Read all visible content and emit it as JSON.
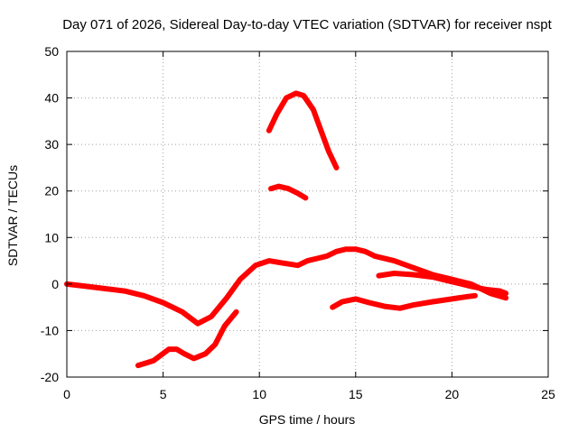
{
  "chart_data": {
    "type": "line",
    "title": "Day 071 of 2026, Sidereal Day-to-day VTEC variation (SDTVAR) for receiver nspt",
    "xlabel": "GPS time / hours",
    "ylabel": "SDTVAR / TECUs",
    "xlim": [
      0,
      25
    ],
    "ylim": [
      -20,
      50
    ],
    "xticks": [
      0,
      5,
      10,
      15,
      20,
      25
    ],
    "yticks": [
      -20,
      -10,
      0,
      10,
      20,
      30,
      40,
      50
    ],
    "xtick_labels": [
      "0",
      "5",
      "10",
      "15",
      "20",
      "25"
    ],
    "ytick_labels": [
      "-20",
      "-10",
      "0",
      "10",
      "20",
      "30",
      "40",
      "50"
    ],
    "grid": true,
    "legend": "none",
    "series_color": "#ff0000",
    "series": [
      {
        "name": "trace-1",
        "x": [
          0,
          1,
          2,
          3,
          4,
          5,
          6,
          6.8,
          7.5,
          8.3,
          9,
          9.8,
          10.5,
          11.2,
          12,
          12.5,
          13,
          13.5,
          14,
          14.5,
          15,
          15.5,
          16,
          17,
          18,
          19,
          20,
          21,
          22,
          22.8
        ],
        "y": [
          0,
          -0.5,
          -1,
          -1.5,
          -2.5,
          -4,
          -6,
          -8.5,
          -7,
          -3,
          1,
          4,
          5,
          4.5,
          4,
          5,
          5.5,
          6,
          7,
          7.5,
          7.5,
          7,
          6,
          5,
          3.5,
          2,
          1,
          0,
          -2,
          -3
        ]
      },
      {
        "name": "trace-2",
        "x": [
          3.7,
          4.5,
          5.3,
          5.7,
          6.1,
          6.6,
          7.2,
          7.7,
          8.2,
          8.8
        ],
        "y": [
          -17.5,
          -16.5,
          -14,
          -14,
          -15,
          -16,
          -15,
          -13,
          -9,
          -6
        ]
      },
      {
        "name": "trace-3",
        "x": [
          10.5,
          10.9,
          11.4,
          11.9,
          12.3,
          12.8,
          13.2,
          13.6,
          14
        ],
        "y": [
          33,
          36.5,
          40,
          41,
          40.5,
          37.5,
          33,
          28.5,
          25
        ]
      },
      {
        "name": "trace-4",
        "x": [
          10.6,
          11,
          11.5,
          12,
          12.4
        ],
        "y": [
          20.5,
          21,
          20.5,
          19.5,
          18.5
        ]
      },
      {
        "name": "trace-5",
        "x": [
          13.8,
          14.3,
          15,
          15.7,
          16.5,
          17.3,
          18,
          19,
          20,
          20.8,
          21.2
        ],
        "y": [
          -5,
          -3.8,
          -3.2,
          -4,
          -4.8,
          -5.2,
          -4.5,
          -3.8,
          -3.2,
          -2.7,
          -2.5
        ]
      },
      {
        "name": "trace-6",
        "x": [
          16.2,
          17,
          18,
          19,
          19.5,
          20.2,
          21,
          21.8,
          22.5,
          22.8
        ],
        "y": [
          1.8,
          2.3,
          2,
          1.5,
          1,
          0.3,
          -0.5,
          -1.2,
          -1.5,
          -2
        ]
      }
    ]
  }
}
